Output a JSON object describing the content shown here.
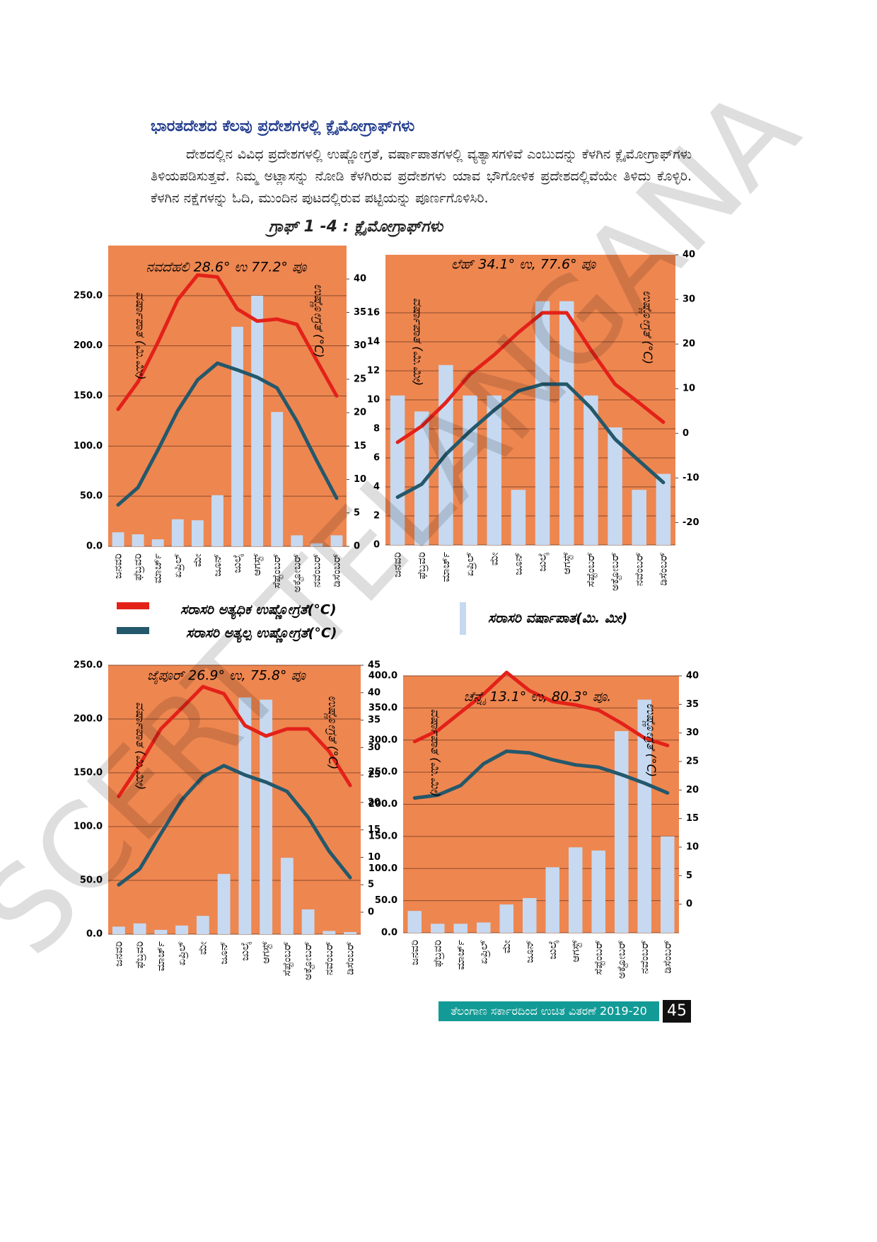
{
  "heading": "ಭಾರತದೇಶದ ಕೆಲವು ಪ್ರದೇಶಗಳಲ್ಲಿ ಕ್ಲೈಮೋಗ್ರಾಫ್‌ಗಳು",
  "paragraph": "ದೇಶದಲ್ಲಿನ ವಿವಿಧ ಪ್ರದೇಶಗಳಲ್ಲಿ ಉಷ್ಣೋಗ್ರತೆ, ವರ್ಷಾಪಾತಗಳಲ್ಲಿ ವ್ಯತ್ಯಾಸಗಳಿವೆ ಎಂಬುದನ್ನು ಕೆಳಗಿನ ಕ್ಲೈಮೋಗ್ರಾಫ್‌ಗಳು ತಿಳಿಯಪಡಿಸುತ್ತವೆ. ನಿಮ್ಮ ಅಟ್ಲಾಸನ್ನು ನೋಡಿ ಕೆಳಗಿರುವ ಪ್ರದೇಶಗಳು ಯಾವ ಭೌಗೋಳಿಕ ಪ್ರದೇಶದಲ್ಲಿವೆಯೇ ತಿಳಿದು ಕೊಳ್ಳಿರಿ. ಕೆಳಗಿನ ನಕ್ಷೆಗಳನ್ನು ಓದಿ, ಮುಂದಿನ ಪುಟದಲ್ಲಿರುವ ಪಟ್ಟಿಯನ್ನು ಪೂರ್ಣಗೊಳಿಸಿರಿ.",
  "graph_caption": "ಗ್ರಾಫ್ 1 -4 : ಕ್ಲೈಮೋಗ್ರಾಫ್‌ಗಳು",
  "watermark": "SCERT TELANGANA",
  "footer": {
    "text": "ತೆಲಂಗಾಣ ಸರ್ಕಾರದಿಂದ ಉಚಿತ ವಿತರಣೆ 2019-20",
    "page_number": 45
  },
  "chart_data": [
    {
      "type": "combo",
      "title": "ನವದೆಹಲಿ 28.6° ಉ 77.2° ಪೂ",
      "y_label": "ವರ್ಷಾಪಾತ (ಮಿ.ಮೀ)",
      "y2_label": "ಉಷ್ಣೋಗ್ರತೆ (°C)",
      "categories": [
        "ಜನವರಿ",
        "ಫೆಬ್ರವರಿ",
        "ಮಾರ್ಚ್",
        "ಏಪ್ರಿಲ್",
        "ಮೇ",
        "ಜೂನ್",
        "ಜುಲೈ",
        "ಆಗಸ್ಟ್",
        "ಸೆಪ್ಟೆಂಬರ್",
        "ಅಕ್ಟೋಬರ್",
        "ನವೆಂಬರ್",
        "ಡಿಸೆಂಬರ್"
      ],
      "ylim": [
        0,
        300
      ],
      "yticks": [
        {
          "value": 0,
          "label": "0.0"
        },
        {
          "value": 50,
          "label": "50.0"
        },
        {
          "value": 100,
          "label": "100.0"
        },
        {
          "value": 150,
          "label": "150.0"
        },
        {
          "value": 200,
          "label": "200.0"
        },
        {
          "value": 250,
          "label": "250.0"
        }
      ],
      "y2lim": [
        0,
        45
      ],
      "y2ticks": [
        0,
        5,
        10,
        15,
        20,
        25,
        30,
        35,
        40
      ],
      "grid": true,
      "background": "#ee8650",
      "series": [
        {
          "name": "ಸರಾಸರಿ ವರ್ಷಾಪಾತ(ಮಿ. ಮೀ)",
          "type": "bar",
          "color": "#c6d9f0",
          "values": [
            14,
            12,
            7,
            27,
            26,
            51,
            219,
            250,
            134,
            11,
            3,
            11
          ]
        },
        {
          "name": "ಸರಾಸರಿ ಅತ್ಯಧಿಕ ಉಷ್ಣೋಗ್ರತೆ(°C)",
          "type": "line",
          "axis": "y2",
          "color": "#e32119",
          "values": [
            20.5,
            24.6,
            30.5,
            36.9,
            40.6,
            40.3,
            35.5,
            33.7,
            34,
            33.2,
            27.8,
            22.5
          ]
        },
        {
          "name": "ಸರಾಸರಿ ಅತ್ಯಲ್ಪ ಉಷ್ಣೋಗ್ರತೆ(°C)",
          "type": "line",
          "axis": "y2",
          "color": "#24586b",
          "values": [
            6.2,
            8.8,
            14.4,
            20.3,
            24.9,
            27.4,
            26.4,
            25.3,
            23.7,
            18.7,
            12.8,
            7.2
          ]
        }
      ]
    },
    {
      "type": "combo",
      "title": "ಲೆಹ್ 34.1° ಉ, 77.6° ಪೂ",
      "y_label": "ವರ್ಷಾಪಾತ (ಮಿ.ಮೀ)",
      "y2_label": "ಉಷ್ಣೋಗ್ರತೆ (°C)",
      "categories": [
        "ಜನವರಿ",
        "ಫೆಬ್ರವರಿ",
        "ಮಾರ್ಚ್",
        "ಏಪ್ರಿಲ್",
        "ಮೇ",
        "ಜೂನ್",
        "ಜುಲೈ",
        "ಆಗಸ್ಟ್",
        "ಸೆಪ್ಟೆಂಬರ್",
        "ಅಕ್ಟೋಬರ್",
        "ನವೆಂಬರ್",
        "ಡಿಸೆಂಬರ್"
      ],
      "ylim": [
        0,
        20
      ],
      "yticks": [
        0,
        2,
        4,
        6,
        8,
        10,
        12,
        14,
        16
      ],
      "y2lim": [
        -25,
        40
      ],
      "y2ticks": [
        -20,
        -10,
        0,
        10,
        20,
        30,
        40
      ],
      "grid": true,
      "background": "#ee8650",
      "series": [
        {
          "type": "bar",
          "color": "#c6d9f0",
          "values": [
            10.3,
            9.2,
            12.4,
            10.3,
            10.3,
            3.8,
            16.8,
            16.8,
            10.3,
            8.1,
            3.8,
            4.9
          ]
        },
        {
          "type": "line",
          "axis": "y2",
          "color": "#e32119",
          "values": [
            -2,
            1.6,
            6.9,
            13.2,
            17.6,
            22.6,
            27,
            27,
            18.7,
            11,
            6.8,
            2.5
          ]
        },
        {
          "type": "line",
          "axis": "y2",
          "color": "#24586b",
          "values": [
            -14.3,
            -11.4,
            -4.7,
            0.5,
            5.2,
            9.5,
            11,
            11,
            5.7,
            -1.3,
            -6.2,
            -11
          ]
        }
      ]
    },
    {
      "type": "combo",
      "title": "ಜೈಪೂರ್ 26.9° ಉ, 75.8° ಪೂ",
      "y_label": "ವರ್ಷಾಪಾತ (ಮಿ.ಮೀ)",
      "y2_label": "ಉಷ್ಣೋಗ್ರತೆ (°C)",
      "categories": [
        "ಜನವರಿ",
        "ಫೆಬ್ರವರಿ",
        "ಮಾರ್ಚ್",
        "ಏಪ್ರಿಲ್",
        "ಮೇ",
        "ಜೂನ್",
        "ಜುಲೈ",
        "ಆಗಸ್ಟ್",
        "ಸೆಪ್ಟೆಂಬರ್",
        "ಅಕ್ಟೋಬರ್",
        "ನವೆಂಬರ್",
        "ಡಿಸೆಂಬರ್"
      ],
      "ylim": [
        0,
        250
      ],
      "yticks": [
        {
          "value": 0,
          "label": "0.0"
        },
        {
          "value": 50,
          "label": "50.0"
        },
        {
          "value": 100,
          "label": "100.0"
        },
        {
          "value": 150,
          "label": "150.0"
        },
        {
          "value": 200,
          "label": "200.0"
        },
        {
          "value": 250,
          "label": "250.0"
        }
      ],
      "y2lim": [
        -4,
        45
      ],
      "y2ticks": [
        0,
        5,
        10,
        15,
        20,
        25,
        30,
        35,
        40,
        45
      ],
      "grid": true,
      "background": "#ee8650",
      "series": [
        {
          "type": "bar",
          "color": "#c6d9f0",
          "values": [
            7,
            10,
            4,
            8,
            17,
            56,
            220,
            218,
            71,
            23,
            3,
            2
          ]
        },
        {
          "type": "line",
          "axis": "y2",
          "color": "#e32119",
          "values": [
            21.1,
            26.9,
            33.4,
            37.2,
            41.1,
            39.8,
            34,
            32.1,
            33.4,
            33.4,
            29.3,
            23.1
          ]
        },
        {
          "type": "line",
          "axis": "y2",
          "color": "#24586b",
          "values": [
            5,
            7.9,
            14.3,
            20.5,
            24.7,
            26.7,
            25,
            23.7,
            22,
            17.3,
            11.1,
            6.3
          ]
        }
      ]
    },
    {
      "type": "combo",
      "title": "ಚೆನ್ನೈ 13.1° ಉ, 80.3° ಪೂ.",
      "y_label": "ವರ್ಷಾಪಾತ (ಮಿ.ಮೀ)",
      "y2_label": "ಉಷ್ಣೋಗ್ರತೆ (°C)",
      "categories": [
        "ಜನವರಿ",
        "ಫೆಬ್ರವರಿ",
        "ಮಾರ್ಚ್",
        "ಏಪ್ರಿಲ್",
        "ಮೇ",
        "ಜೂನ್",
        "ಜುಲೈ",
        "ಆಗಸ್ಟ್",
        "ಸೆಪ್ಟೆಂಬರ್",
        "ಅಕ್ಟೋಬರ್",
        "ನವೆಂಬರ್",
        "ಡಿಸೆಂಬರ್"
      ],
      "ylim": [
        0,
        400
      ],
      "yticks": [
        {
          "value": 0,
          "label": "0.0"
        },
        {
          "value": 50,
          "label": "50.0"
        },
        {
          "value": 100,
          "label": "100.0"
        },
        {
          "value": 150,
          "label": "150.0"
        },
        {
          "value": 200,
          "label": "200.0"
        },
        {
          "value": 250,
          "label": "250.0"
        },
        {
          "value": 300,
          "label": "300.0"
        },
        {
          "value": 350,
          "label": "350.0"
        },
        {
          "value": 400,
          "label": "400.0"
        }
      ],
      "y2lim": [
        -5,
        40
      ],
      "y2ticks": [
        0,
        5,
        10,
        15,
        20,
        25,
        30,
        35,
        40
      ],
      "grid": true,
      "background": "#ee8650",
      "series": [
        {
          "type": "bar",
          "color": "#c6d9f0",
          "values": [
            34,
            14,
            14,
            16,
            44,
            54,
            102,
            133,
            128,
            314,
            363,
            150
          ]
        },
        {
          "type": "line",
          "axis": "y2",
          "color": "#e32119",
          "values": [
            28.5,
            30.4,
            33.6,
            36.8,
            40.6,
            37.4,
            35.5,
            34.9,
            34,
            31.7,
            29.1,
            27.8
          ]
        },
        {
          "type": "line",
          "axis": "y2",
          "color": "#24586b",
          "values": [
            18.6,
            19.1,
            20.8,
            24.6,
            26.8,
            26.5,
            25.3,
            24.4,
            24,
            22.7,
            21.2,
            19.5
          ]
        }
      ]
    }
  ]
}
